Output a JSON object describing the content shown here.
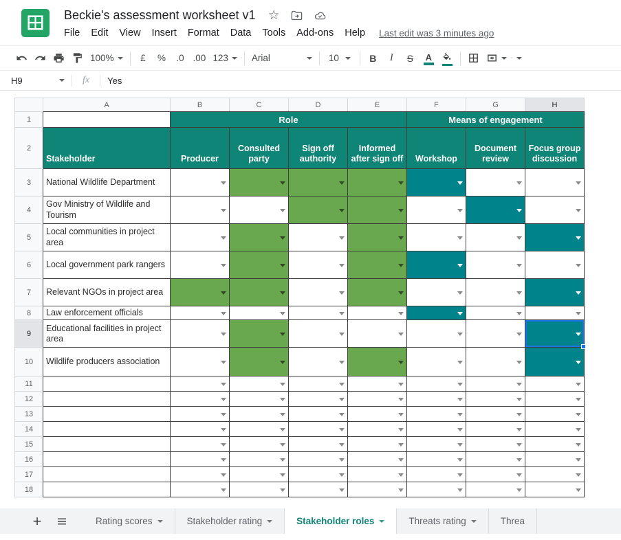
{
  "app": {
    "title": "Beckie's assessment worksheet v1",
    "menu": [
      "File",
      "Edit",
      "View",
      "Insert",
      "Format",
      "Data",
      "Tools",
      "Add-ons",
      "Help"
    ],
    "last_edit": "Last edit was 3 minutes ago"
  },
  "toolbar": {
    "zoom": "100%",
    "currency": "£",
    "percent": "%",
    "decrease_decimal": ".0",
    "increase_decimal": ".00",
    "number_format": "123",
    "font": "Arial",
    "font_size": "10",
    "bold": "B",
    "italic": "I",
    "strikethrough": "S",
    "text_color": "A"
  },
  "formula_bar": {
    "cell_ref": "H9",
    "fx": "fx",
    "value": "Yes"
  },
  "grid": {
    "column_letters": [
      "A",
      "B",
      "C",
      "D",
      "E",
      "F",
      "G",
      "H"
    ],
    "group_headers": [
      {
        "label": "Role",
        "span": 4
      },
      {
        "label": "Means of engagement",
        "span": 3
      }
    ],
    "column_headers": [
      "Stakeholder",
      "Producer",
      "Consulted party",
      "Sign off authority",
      "Informed after sign off",
      "Workshop",
      "Document review",
      "Focus group discussion"
    ],
    "rows": [
      {
        "n": 3,
        "label": "National Wildlife Department",
        "cells": [
          "w",
          "g",
          "g",
          "g",
          "t",
          "w",
          "w"
        ]
      },
      {
        "n": 4,
        "label": "Gov Ministry of Wildlife and Tourism",
        "cells": [
          "w",
          "w",
          "g",
          "g",
          "w",
          "t",
          "w"
        ]
      },
      {
        "n": 5,
        "label": "Local communities in project area",
        "cells": [
          "w",
          "g",
          "w",
          "g",
          "w",
          "w",
          "t"
        ]
      },
      {
        "n": 6,
        "label": "Local government park rangers",
        "cells": [
          "w",
          "g",
          "w",
          "g",
          "t",
          "w",
          "w"
        ]
      },
      {
        "n": 7,
        "label": "Relevant NGOs in project area",
        "cells": [
          "g",
          "g",
          "w",
          "g",
          "w",
          "w",
          "t"
        ]
      },
      {
        "n": 8,
        "label": "Law enforcement officials",
        "cells": [
          "w",
          "w",
          "w",
          "w",
          "t",
          "w",
          "w"
        ]
      },
      {
        "n": 9,
        "label": "Educational facilities in project area",
        "cells": [
          "w",
          "g",
          "w",
          "w",
          "w",
          "w",
          "t"
        ]
      },
      {
        "n": 10,
        "label": "Wildlife producers association",
        "cells": [
          "w",
          "g",
          "w",
          "g",
          "w",
          "w",
          "t"
        ]
      }
    ],
    "empty_rows": [
      11,
      12,
      13,
      14,
      15,
      16,
      17,
      18
    ],
    "selected_cell": "H9"
  },
  "sheet_tabs": {
    "add_icon": "+",
    "tabs": [
      "Rating scores",
      "Stakeholder rating",
      "Stakeholder roles",
      "Threats rating",
      "Threa"
    ],
    "active": "Stakeholder roles"
  },
  "colors": {
    "header_teal": "#0f8578",
    "cell_teal": "#00838a",
    "cell_green": "#6aa84f",
    "selection_blue": "#1a73e8"
  }
}
